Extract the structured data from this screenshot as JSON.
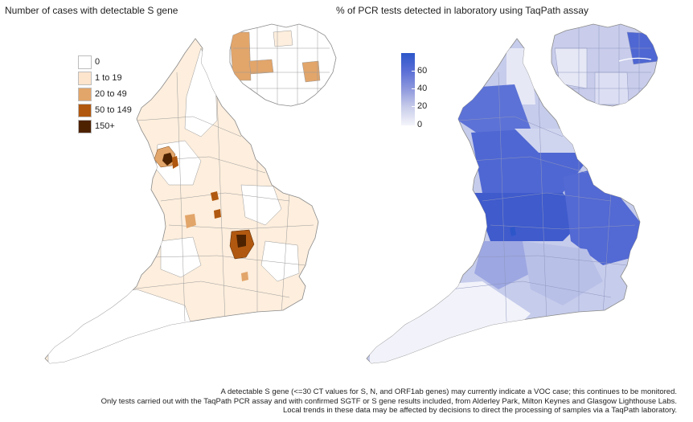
{
  "titles": {
    "left": "Number of cases with detectable S gene",
    "right": "% of PCR tests detected in laboratory using TaqPath assay"
  },
  "legend_left": {
    "items": [
      {
        "label": "0",
        "color": "#ffffff"
      },
      {
        "label": "1 to 19",
        "color": "#fde4cc"
      },
      {
        "label": "20 to 49",
        "color": "#e2a56a"
      },
      {
        "label": "50 to 149",
        "color": "#b0580f"
      },
      {
        "label": "150+",
        "color": "#4d2200"
      }
    ]
  },
  "legend_right": {
    "ticks": [
      "60",
      "40",
      "20",
      "0"
    ],
    "color_low": "#f4f5fb",
    "color_high": "#2d56c9"
  },
  "footnote": [
    "A detectable S gene (<=30 CT values for S, N, and ORF1ab genes) may currently indicate a VOC case; this continues to be monitored.",
    "Only tests carried out with the TaqPath PCR assay and with confirmed SGTF or S gene results included, from Alderley Park, Milton Keynes and Glasgow Lighthouse Labs.",
    "Local trends in these data may be affected by decisions to direct the processing of samples via a TaqPath laboratory."
  ]
}
